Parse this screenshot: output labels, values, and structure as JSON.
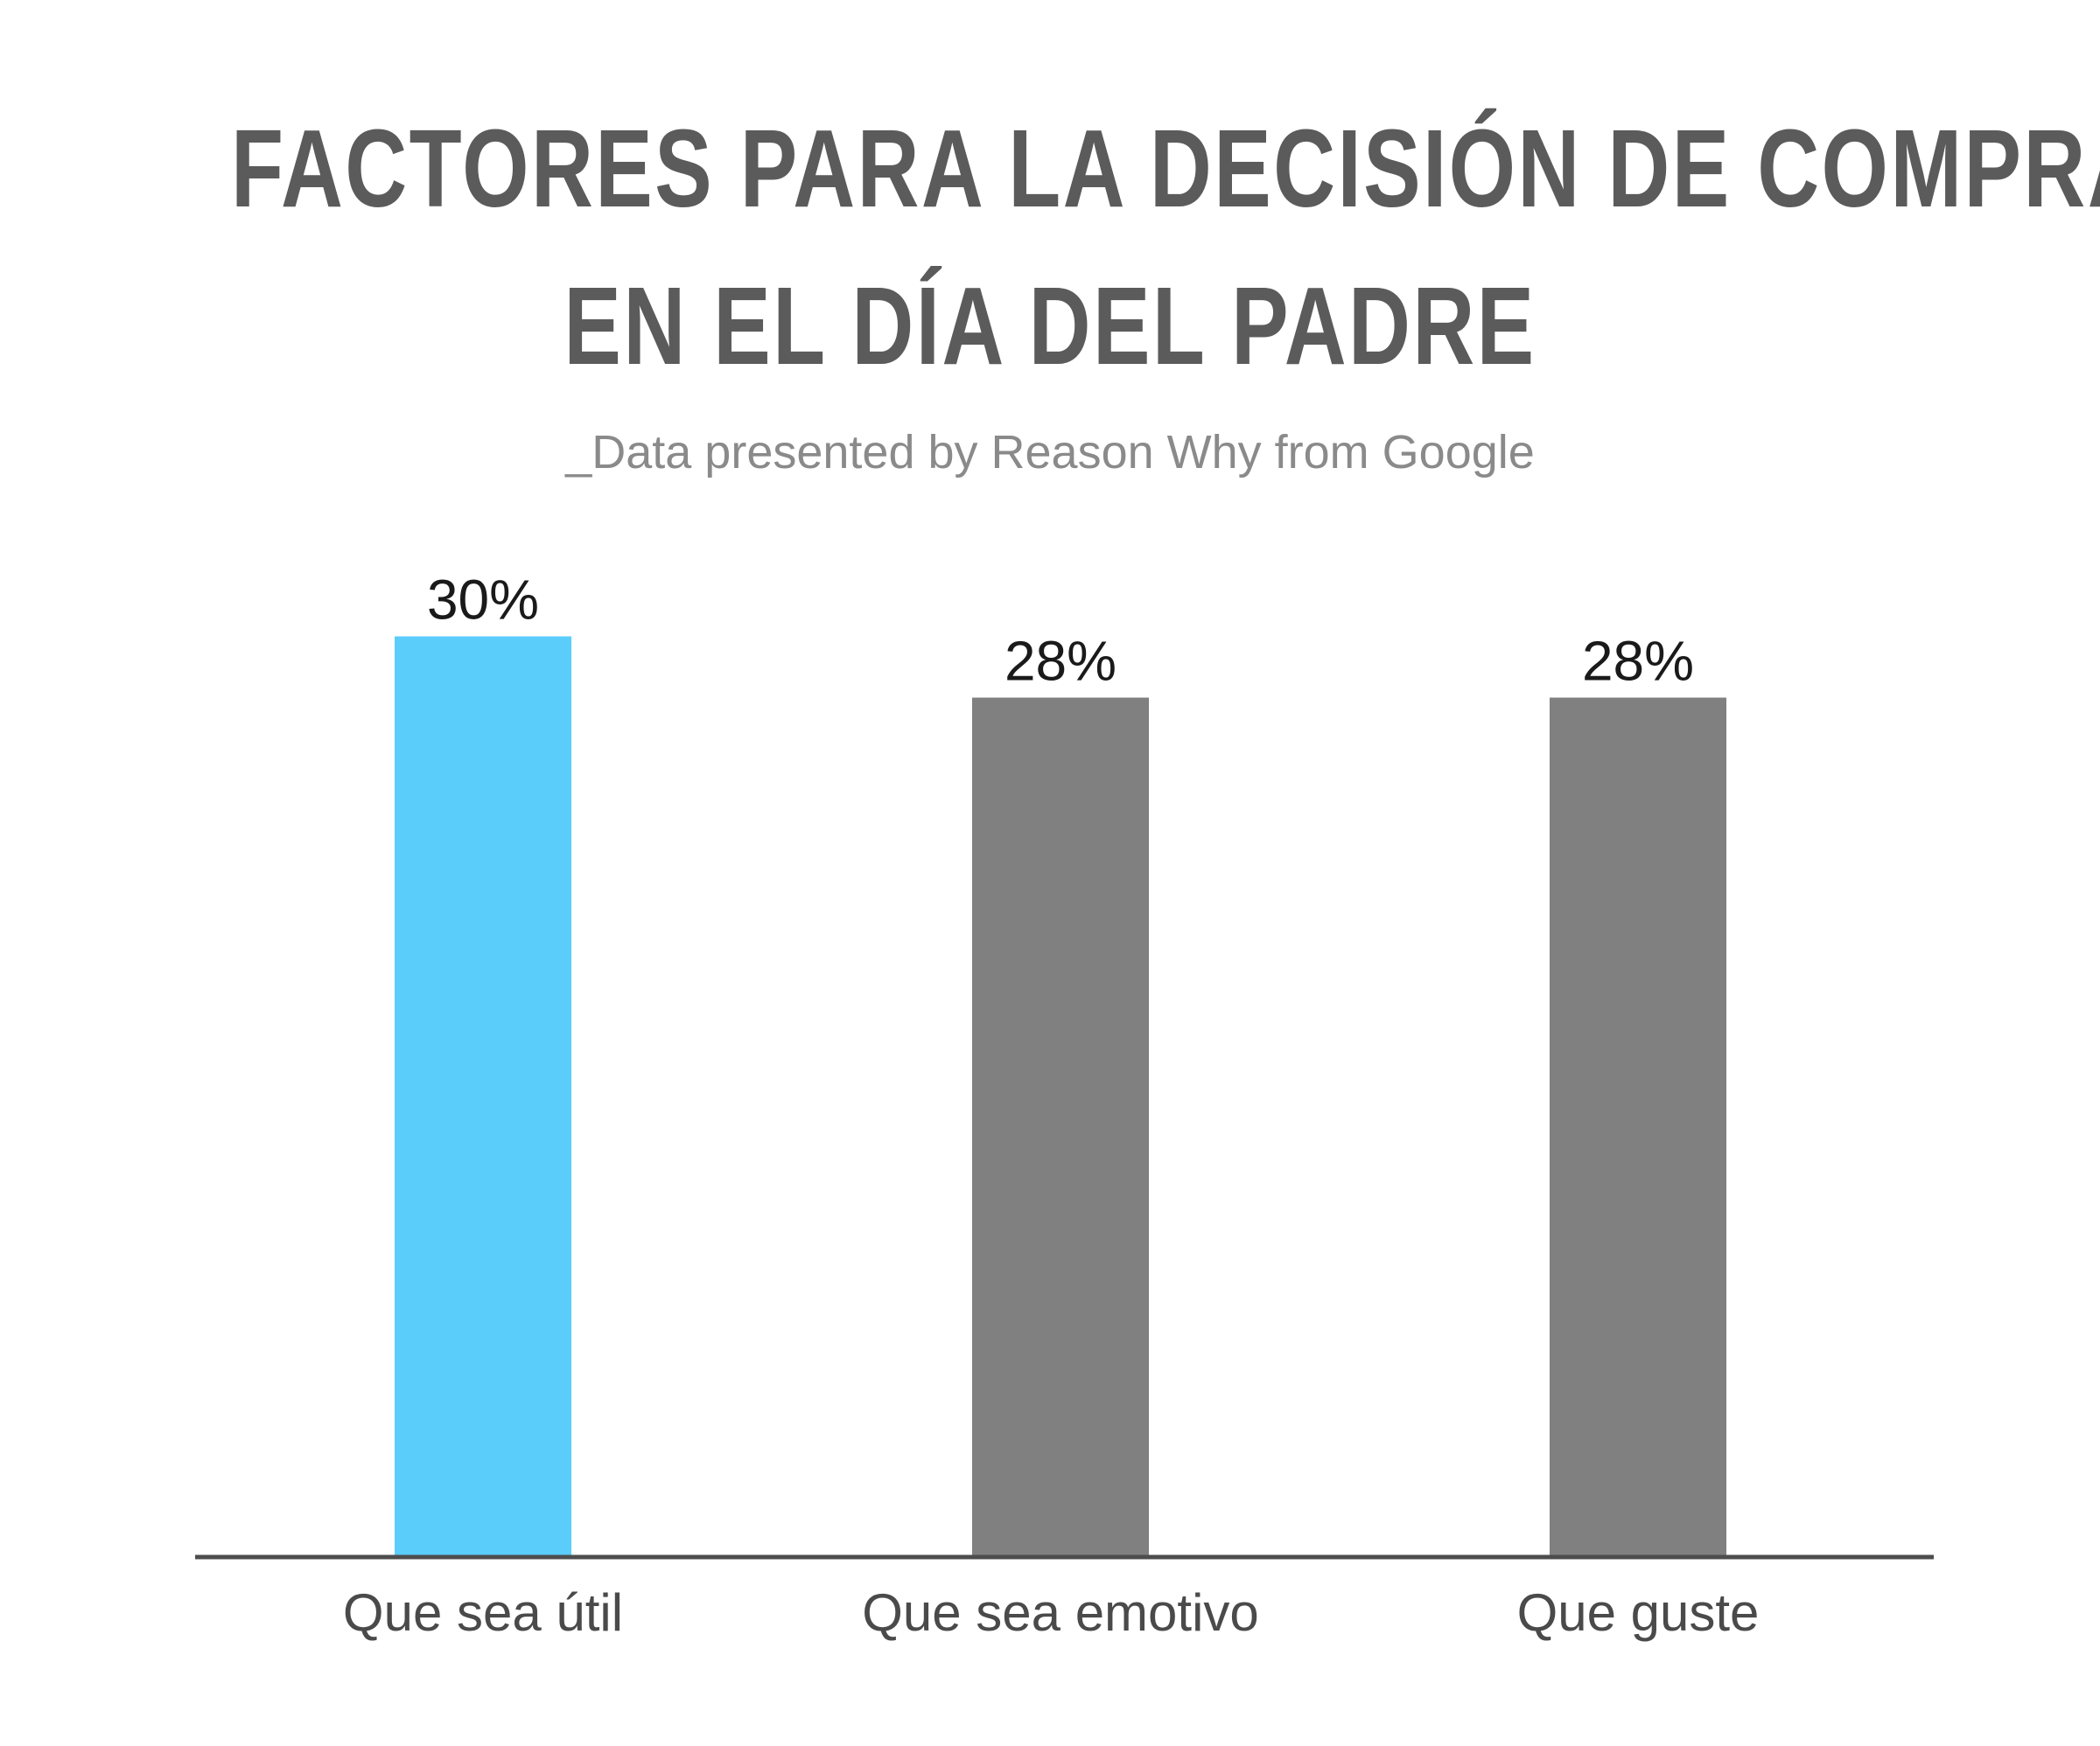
{
  "title": {
    "line1": "FACTORES PARA LA DECISIÓN DE COMPRA",
    "line2": "EN EL DÍA DEL PADRE"
  },
  "subtitle": "_Data presented by Reason Why from Google",
  "colors": {
    "highlight": "#5BCDFB",
    "bar": "#808080",
    "axis": "#4d4d4d",
    "title": "#5b5b5b"
  },
  "chart_data": {
    "type": "bar",
    "categories": [
      "Que sea útil",
      "Que sea emotivo",
      "Que guste"
    ],
    "values": [
      30,
      28,
      28
    ],
    "value_labels": [
      "30%",
      "28%",
      "28%"
    ],
    "title": "FACTORES PARA LA DECISIÓN DE COMPRA EN EL DÍA DEL PADRE",
    "subtitle": "_Data presented by Reason Why from Google",
    "xlabel": "",
    "ylabel": "",
    "ylim": [
      0,
      28.5
    ],
    "grid": false,
    "legend": "none",
    "highlighted_category": "Que sea útil"
  }
}
